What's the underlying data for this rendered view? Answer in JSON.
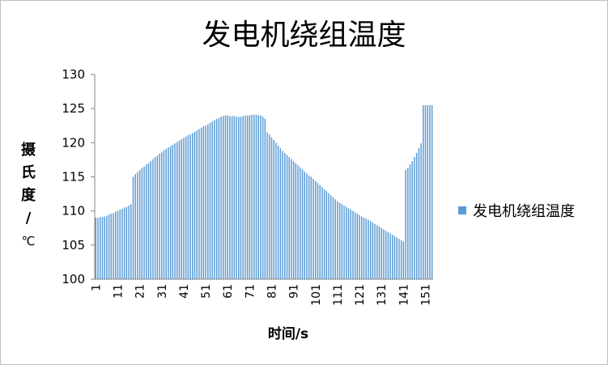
{
  "chart_data": {
    "type": "bar",
    "title": "发电机绕组温度",
    "ylabel_chars": [
      "摄",
      "氏",
      "度"
    ],
    "ylabel_slash": "/",
    "ylabel_unit": "℃",
    "xlabel": "时间/s",
    "ylim": [
      100,
      130
    ],
    "yticks": [
      100,
      105,
      110,
      115,
      120,
      125,
      130
    ],
    "xtick_labels": [
      "1",
      "11",
      "21",
      "31",
      "41",
      "51",
      "61",
      "71",
      "81",
      "91",
      "101",
      "111",
      "121",
      "131",
      "141",
      "151"
    ],
    "grid": false,
    "legend_position": "right",
    "bar_color": "#5b9bd5",
    "series": [
      {
        "name": "发电机绕组温度",
        "x": [
          1,
          2,
          3,
          4,
          5,
          6,
          7,
          8,
          9,
          10,
          11,
          12,
          13,
          14,
          15,
          16,
          17,
          18,
          19,
          20,
          21,
          22,
          23,
          24,
          25,
          26,
          27,
          28,
          29,
          30,
          31,
          32,
          33,
          34,
          35,
          36,
          37,
          38,
          39,
          40,
          41,
          42,
          43,
          44,
          45,
          46,
          47,
          48,
          49,
          50,
          51,
          52,
          53,
          54,
          55,
          56,
          57,
          58,
          59,
          60,
          61,
          62,
          63,
          64,
          65,
          66,
          67,
          68,
          69,
          70,
          71,
          72,
          73,
          74,
          75,
          76,
          77,
          78,
          79,
          80,
          81,
          82,
          83,
          84,
          85,
          86,
          87,
          88,
          89,
          90,
          91,
          92,
          93,
          94,
          95,
          96,
          97,
          98,
          99,
          100,
          101,
          102,
          103,
          104,
          105,
          106,
          107,
          108,
          109,
          110,
          111,
          112,
          113,
          114,
          115,
          116,
          117,
          118,
          119,
          120,
          121,
          122,
          123,
          124,
          125,
          126,
          127,
          128,
          129,
          130,
          131,
          132,
          133,
          134,
          135,
          136,
          137,
          138,
          139,
          140,
          141,
          142,
          143,
          144,
          145,
          146,
          147,
          148,
          149,
          150,
          151,
          152,
          153,
          154
        ],
        "values": [
          109.0,
          109.0,
          109.1,
          109.1,
          109.2,
          109.3,
          109.5,
          109.6,
          109.7,
          109.9,
          110.0,
          110.2,
          110.3,
          110.5,
          110.6,
          110.8,
          111.0,
          115.0,
          115.4,
          115.7,
          116.0,
          116.3,
          116.5,
          116.8,
          117.0,
          117.3,
          117.6,
          117.9,
          118.1,
          118.4,
          118.6,
          118.9,
          119.1,
          119.3,
          119.5,
          119.7,
          119.9,
          120.1,
          120.3,
          120.5,
          120.7,
          120.9,
          121.1,
          121.2,
          121.4,
          121.6,
          121.8,
          122.0,
          122.2,
          122.4,
          122.5,
          122.7,
          122.9,
          123.1,
          123.3,
          123.5,
          123.6,
          123.8,
          123.9,
          124.0,
          124.0,
          123.9,
          123.9,
          123.9,
          123.8,
          123.8,
          123.8,
          123.9,
          124.0,
          124.0,
          124.0,
          124.1,
          124.1,
          124.1,
          124.0,
          124.0,
          123.8,
          123.5,
          121.5,
          121.2,
          120.8,
          120.4,
          120.0,
          119.6,
          119.2,
          118.8,
          118.5,
          118.2,
          117.9,
          117.6,
          117.3,
          117.0,
          116.7,
          116.4,
          116.1,
          115.8,
          115.5,
          115.2,
          115.0,
          114.7,
          114.4,
          114.1,
          113.8,
          113.5,
          113.2,
          112.9,
          112.6,
          112.3,
          112.0,
          111.7,
          111.4,
          111.2,
          111.0,
          110.8,
          110.6,
          110.4,
          110.2,
          110.0,
          109.8,
          109.6,
          109.4,
          109.2,
          109.0,
          108.9,
          108.7,
          108.5,
          108.3,
          108.1,
          107.9,
          107.7,
          107.5,
          107.3,
          107.1,
          106.9,
          106.7,
          106.5,
          106.3,
          106.1,
          105.9,
          105.7,
          105.5,
          116.0,
          116.3,
          116.8,
          117.3,
          117.9,
          118.5,
          119.2,
          119.9,
          125.5,
          125.5,
          125.5,
          125.5,
          125.5
        ]
      }
    ]
  }
}
